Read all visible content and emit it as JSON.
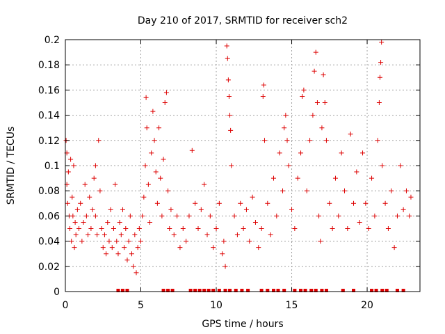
{
  "chart_data": {
    "type": "scatter",
    "title": "Day 210 of 2017, SRMTID for receiver sch2",
    "xlabel": "GPS time / hours",
    "ylabel": "SRMTID / TECUs",
    "xlim": [
      0,
      23.5
    ],
    "ylim": [
      0,
      0.2
    ],
    "xticks": [
      0,
      5,
      10,
      15,
      20
    ],
    "xtick_labels": [
      "0",
      "5",
      "10",
      "15",
      "20"
    ],
    "yticks": [
      0,
      0.02,
      0.04,
      0.06,
      0.08,
      0.1,
      0.12,
      0.14,
      0.16,
      0.18,
      0.2
    ],
    "ytick_labels": [
      "0",
      "0.02",
      "0.04",
      "0.06",
      "0.08",
      "0.1",
      "0.12",
      "0.14",
      "0.16",
      "0.18",
      "0.2"
    ],
    "grid": true,
    "marker": "+",
    "color": "#dd0000",
    "series": [
      {
        "name": "SRMTID",
        "points": [
          [
            0.05,
            0.12
          ],
          [
            0.1,
            0.11
          ],
          [
            0.1,
            0.085
          ],
          [
            0.15,
            0.07
          ],
          [
            0.2,
            0.095
          ],
          [
            0.25,
            0.06
          ],
          [
            0.3,
            0.05
          ],
          [
            0.35,
            0.105
          ],
          [
            0.4,
            0.04
          ],
          [
            0.45,
            0.075
          ],
          [
            0.5,
            0.06
          ],
          [
            0.55,
            0.1
          ],
          [
            0.6,
            0.035
          ],
          [
            0.65,
            0.055
          ],
          [
            0.7,
            0.045
          ],
          [
            0.8,
            0.065
          ],
          [
            0.9,
            0.05
          ],
          [
            1.0,
            0.07
          ],
          [
            1.1,
            0.04
          ],
          [
            1.2,
            0.055
          ],
          [
            1.3,
            0.085
          ],
          [
            1.4,
            0.06
          ],
          [
            1.5,
            0.045
          ],
          [
            1.6,
            0.075
          ],
          [
            1.7,
            0.05
          ],
          [
            1.8,
            0.065
          ],
          [
            1.9,
            0.09
          ],
          [
            2.0,
            0.1
          ],
          [
            2.0,
            0.06
          ],
          [
            2.1,
            0.045
          ],
          [
            2.2,
            0.12
          ],
          [
            2.3,
            0.08
          ],
          [
            2.4,
            0.05
          ],
          [
            2.5,
            0.035
          ],
          [
            2.6,
            0.045
          ],
          [
            2.7,
            0.03
          ],
          [
            2.8,
            0.055
          ],
          [
            2.9,
            0.04
          ],
          [
            3.0,
            0.065
          ],
          [
            3.1,
            0.035
          ],
          [
            3.2,
            0.05
          ],
          [
            3.3,
            0.085
          ],
          [
            3.4,
            0.04
          ],
          [
            3.5,
            0.03
          ],
          [
            3.6,
            0.055
          ],
          [
            3.7,
            0.045
          ],
          [
            3.8,
            0.065
          ],
          [
            3.9,
            0.035
          ],
          [
            4.0,
            0.05
          ],
          [
            4.1,
            0.025
          ],
          [
            4.2,
            0.04
          ],
          [
            4.3,
            0.06
          ],
          [
            4.4,
            0.03
          ],
          [
            4.5,
            0.02
          ],
          [
            4.6,
            0.045
          ],
          [
            4.7,
            0.015
          ],
          [
            4.8,
            0.035
          ],
          [
            4.9,
            0.05
          ],
          [
            5.0,
            0.04
          ],
          [
            5.1,
            0.06
          ],
          [
            5.2,
            0.075
          ],
          [
            5.3,
            0.1
          ],
          [
            5.35,
            0.154
          ],
          [
            5.4,
            0.13
          ],
          [
            5.5,
            0.085
          ],
          [
            5.6,
            0.055
          ],
          [
            5.7,
            0.11
          ],
          [
            5.8,
            0.143
          ],
          [
            5.9,
            0.12
          ],
          [
            6.0,
            0.095
          ],
          [
            6.1,
            0.07
          ],
          [
            6.2,
            0.13
          ],
          [
            6.3,
            0.09
          ],
          [
            6.4,
            0.06
          ],
          [
            6.5,
            0.105
          ],
          [
            6.6,
            0.15
          ],
          [
            6.7,
            0.158
          ],
          [
            6.8,
            0.08
          ],
          [
            6.9,
            0.05
          ],
          [
            7.0,
            0.065
          ],
          [
            7.2,
            0.045
          ],
          [
            7.4,
            0.06
          ],
          [
            7.6,
            0.035
          ],
          [
            7.8,
            0.05
          ],
          [
            8.0,
            0.04
          ],
          [
            8.2,
            0.06
          ],
          [
            8.4,
            0.112
          ],
          [
            8.6,
            0.07
          ],
          [
            8.8,
            0.05
          ],
          [
            9.0,
            0.065
          ],
          [
            9.2,
            0.085
          ],
          [
            9.4,
            0.045
          ],
          [
            9.6,
            0.06
          ],
          [
            9.8,
            0.035
          ],
          [
            10.0,
            0.05
          ],
          [
            10.2,
            0.07
          ],
          [
            10.4,
            0.03
          ],
          [
            10.5,
            0.04
          ],
          [
            10.6,
            0.02
          ],
          [
            10.7,
            0.195
          ],
          [
            10.75,
            0.185
          ],
          [
            10.8,
            0.168
          ],
          [
            10.85,
            0.155
          ],
          [
            10.9,
            0.14
          ],
          [
            10.95,
            0.128
          ],
          [
            11.0,
            0.1
          ],
          [
            11.2,
            0.06
          ],
          [
            11.4,
            0.045
          ],
          [
            11.6,
            0.07
          ],
          [
            11.8,
            0.05
          ],
          [
            12.0,
            0.065
          ],
          [
            12.2,
            0.04
          ],
          [
            12.4,
            0.075
          ],
          [
            12.6,
            0.055
          ],
          [
            12.8,
            0.035
          ],
          [
            13.0,
            0.05
          ],
          [
            13.1,
            0.155
          ],
          [
            13.15,
            0.164
          ],
          [
            13.2,
            0.12
          ],
          [
            13.4,
            0.07
          ],
          [
            13.6,
            0.045
          ],
          [
            13.8,
            0.09
          ],
          [
            14.0,
            0.06
          ],
          [
            14.2,
            0.11
          ],
          [
            14.4,
            0.08
          ],
          [
            14.5,
            0.13
          ],
          [
            14.6,
            0.14
          ],
          [
            14.7,
            0.12
          ],
          [
            14.8,
            0.1
          ],
          [
            15.0,
            0.065
          ],
          [
            15.2,
            0.05
          ],
          [
            15.4,
            0.09
          ],
          [
            15.6,
            0.11
          ],
          [
            15.7,
            0.155
          ],
          [
            15.8,
            0.16
          ],
          [
            16.0,
            0.08
          ],
          [
            16.2,
            0.12
          ],
          [
            16.4,
            0.14
          ],
          [
            16.5,
            0.175
          ],
          [
            16.6,
            0.19
          ],
          [
            16.7,
            0.15
          ],
          [
            16.8,
            0.06
          ],
          [
            16.9,
            0.04
          ],
          [
            17.0,
            0.13
          ],
          [
            17.1,
            0.172
          ],
          [
            17.2,
            0.15
          ],
          [
            17.3,
            0.12
          ],
          [
            17.5,
            0.07
          ],
          [
            17.7,
            0.05
          ],
          [
            17.9,
            0.09
          ],
          [
            18.1,
            0.06
          ],
          [
            18.3,
            0.11
          ],
          [
            18.5,
            0.08
          ],
          [
            18.7,
            0.05
          ],
          [
            18.9,
            0.125
          ],
          [
            19.1,
            0.07
          ],
          [
            19.3,
            0.095
          ],
          [
            19.5,
            0.055
          ],
          [
            19.7,
            0.11
          ],
          [
            19.9,
            0.07
          ],
          [
            20.1,
            0.05
          ],
          [
            20.3,
            0.09
          ],
          [
            20.5,
            0.06
          ],
          [
            20.7,
            0.12
          ],
          [
            20.8,
            0.15
          ],
          [
            20.85,
            0.17
          ],
          [
            20.9,
            0.182
          ],
          [
            20.95,
            0.198
          ],
          [
            21.0,
            0.1
          ],
          [
            21.2,
            0.07
          ],
          [
            21.4,
            0.05
          ],
          [
            21.6,
            0.08
          ],
          [
            21.8,
            0.035
          ],
          [
            22.0,
            0.06
          ],
          [
            22.2,
            0.1
          ],
          [
            22.4,
            0.065
          ],
          [
            22.6,
            0.08
          ],
          [
            22.8,
            0.06
          ],
          [
            22.9,
            0.075
          ]
        ]
      }
    ],
    "gap_markers_x": [
      3.5,
      3.8,
      4.1,
      6.5,
      6.8,
      7.1,
      8.3,
      8.6,
      8.9,
      9.2,
      9.5,
      9.8,
      10.2,
      10.6,
      10.9,
      11.3,
      11.7,
      12.1,
      13.0,
      13.4,
      13.8,
      14.1,
      14.5,
      15.2,
      15.6,
      15.9,
      16.3,
      16.6,
      17.0,
      17.3,
      18.4,
      19.1,
      20.3,
      20.6,
      21.0,
      21.3,
      22.0,
      22.4
    ]
  }
}
